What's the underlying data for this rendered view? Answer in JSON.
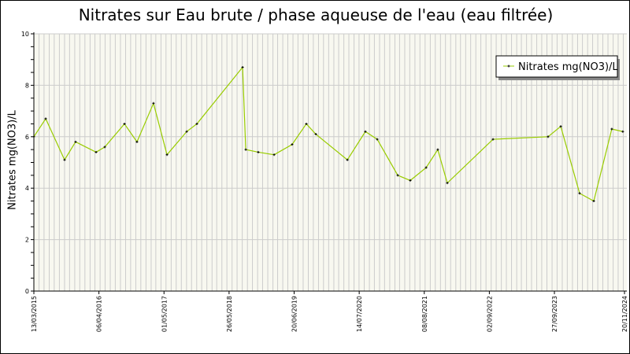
{
  "chart_data": {
    "type": "line",
    "title": "Nitrates sur Eau brute / phase aqueuse de l'eau (eau filtrée)",
    "xlabel": "",
    "ylabel": "Nitrates mg(NO3)/L",
    "ylim": [
      0,
      10
    ],
    "yticks": [
      "0",
      "2",
      "4",
      "6",
      "8",
      "10"
    ],
    "xlim": [
      "2015-03-13",
      "2024-11-20"
    ],
    "xticks": [
      {
        "date": "2015-03-13",
        "label": "13/03/2015"
      },
      {
        "date": "2016-04-06",
        "label": "06/04/2016"
      },
      {
        "date": "2017-05-01",
        "label": "01/05/2017"
      },
      {
        "date": "2018-05-26",
        "label": "26/05/2018"
      },
      {
        "date": "2019-06-20",
        "label": "20/06/2019"
      },
      {
        "date": "2020-07-14",
        "label": "14/07/2020"
      },
      {
        "date": "2021-08-08",
        "label": "08/08/2021"
      },
      {
        "date": "2022-09-02",
        "label": "02/09/2022"
      },
      {
        "date": "2023-09-27",
        "label": "27/09/2023"
      },
      {
        "date": "2024-11-20",
        "label": "20/11/2024"
      }
    ],
    "grid": true,
    "legend": "top-right",
    "line_color": "#99cc00",
    "background": "#f8f8f0",
    "series": [
      {
        "name": "Nitrates mg(NO3)/L",
        "x": [
          "2015-03-13",
          "2015-05-23",
          "2015-09-13",
          "2015-11-18",
          "2016-03-20",
          "2016-05-11",
          "2016-09-06",
          "2016-11-20",
          "2017-02-27",
          "2017-05-19",
          "2017-09-14",
          "2017-11-14",
          "2018-08-15",
          "2018-09-03",
          "2018-11-17",
          "2019-02-20",
          "2019-06-08",
          "2019-09-01",
          "2019-10-28",
          "2020-05-04",
          "2020-08-20",
          "2020-10-30",
          "2021-03-02",
          "2021-05-16",
          "2021-08-19",
          "2021-10-28",
          "2021-12-24",
          "2022-09-24",
          "2023-08-20",
          "2023-11-04",
          "2024-02-25",
          "2024-05-20",
          "2024-09-05",
          "2024-11-10"
        ],
        "y": [
          6.0,
          6.7,
          5.1,
          5.8,
          5.4,
          5.6,
          6.5,
          5.8,
          7.3,
          5.3,
          6.2,
          6.5,
          8.7,
          5.5,
          5.4,
          5.3,
          5.7,
          6.5,
          6.1,
          5.1,
          6.2,
          5.9,
          4.5,
          4.3,
          4.8,
          5.5,
          4.2,
          5.9,
          6.0,
          6.4,
          3.8,
          3.5,
          6.3,
          6.2
        ]
      }
    ]
  }
}
